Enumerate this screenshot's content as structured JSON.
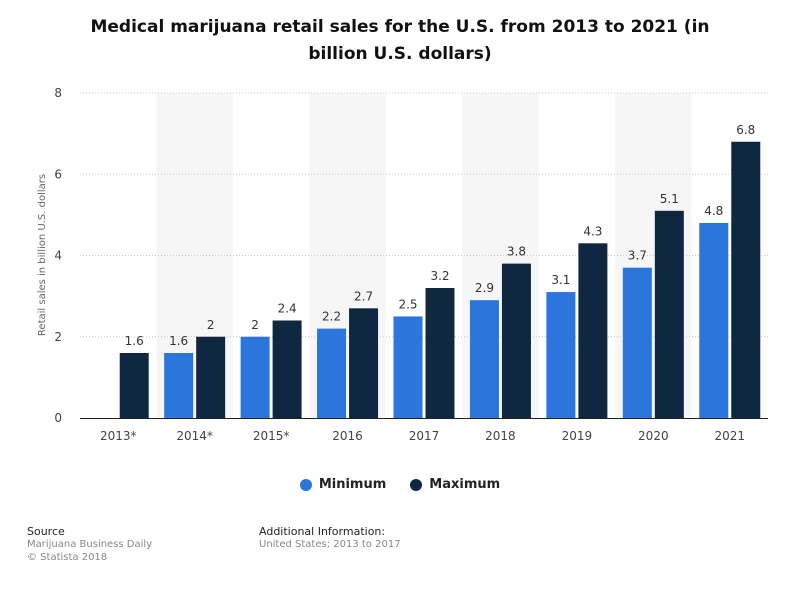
{
  "chart_data": {
    "type": "bar",
    "title": "Medical marijuana retail sales for the U.S. from 2013 to 2021 (in billion U.S. dollars)",
    "ylabel": "Retail sales in billion U.S. dollars",
    "xlabel": "",
    "ylim": [
      0,
      8
    ],
    "yticks": [
      0,
      2,
      4,
      6,
      8
    ],
    "grid": true,
    "legend_position": "bottom",
    "categories": [
      "2013*",
      "2014*",
      "2015*",
      "2016",
      "2017",
      "2018",
      "2019",
      "2020",
      "2021"
    ],
    "series": [
      {
        "name": "Minimum",
        "color": "#2a76dd",
        "values": [
          null,
          1.6,
          2,
          2.2,
          2.5,
          2.9,
          3.1,
          3.7,
          4.8
        ],
        "labels": [
          "",
          "1.6",
          "2",
          "2.2",
          "2.5",
          "2.9",
          "3.1",
          "3.7",
          "4.8"
        ]
      },
      {
        "name": "Maximum",
        "color": "#0f2741",
        "values": [
          1.6,
          2,
          2.4,
          2.7,
          3.2,
          3.8,
          4.3,
          5.1,
          6.8
        ],
        "labels": [
          "1.6",
          "2",
          "2.4",
          "2.7",
          "3.2",
          "3.8",
          "4.3",
          "5.1",
          "6.8"
        ]
      }
    ]
  },
  "footer": {
    "source_title": "Source",
    "source_lines": [
      "Marijuana Business Daily",
      "© Statista 2018"
    ],
    "info_title": "Additional Information:",
    "info_lines": [
      "United States; 2013 to 2017"
    ]
  }
}
